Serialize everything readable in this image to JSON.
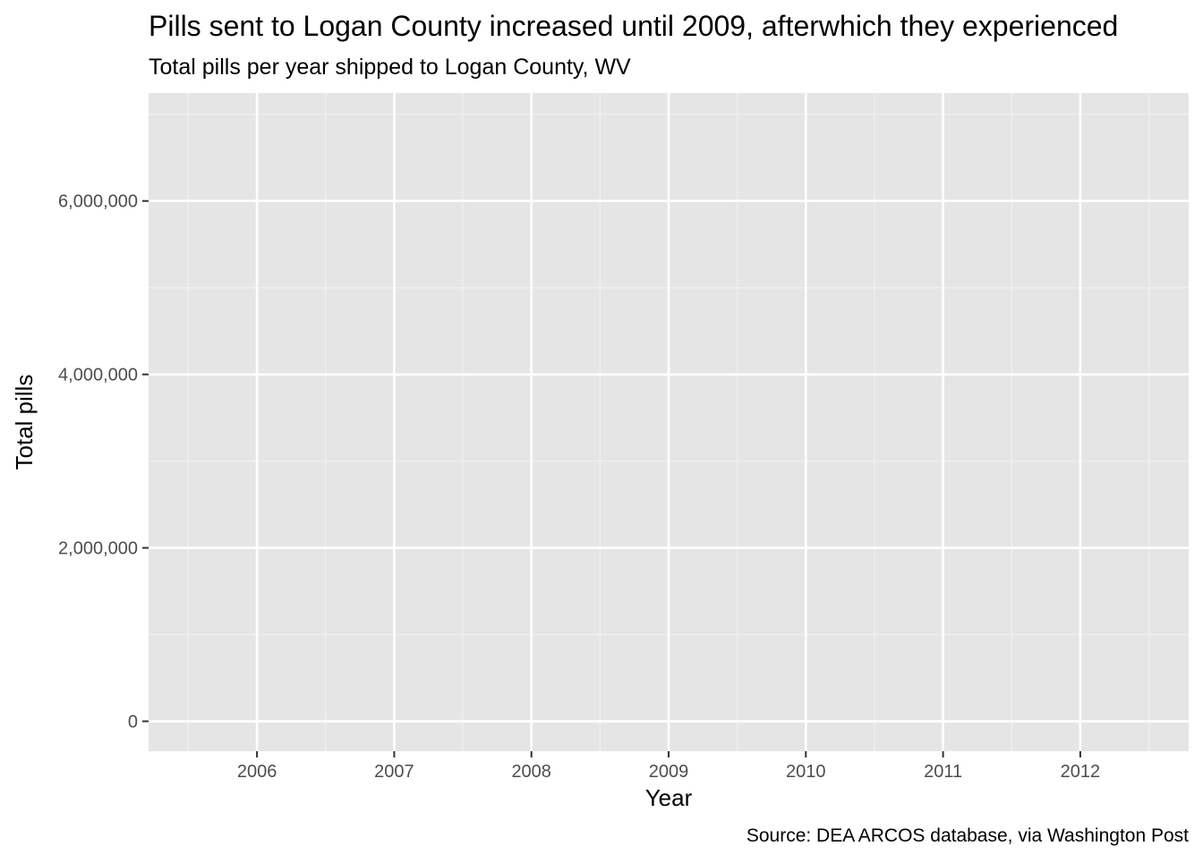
{
  "chart_data": {
    "type": "line",
    "title": "Pills sent to Logan County increased until 2009, afterwhich they experienced",
    "subtitle": "Total pills per year shipped to Logan County, WV",
    "xlabel": "Year",
    "ylabel": "Total pills",
    "caption": "Source: DEA ARCOS database, via Washington Post",
    "x_ticks": [
      "2006",
      "2007",
      "2008",
      "2009",
      "2010",
      "2011",
      "2012"
    ],
    "y_ticks": [
      {
        "value": 0,
        "label": "0"
      },
      {
        "value": 2000000,
        "label": "2,000,000"
      },
      {
        "value": 4000000,
        "label": "4,000,000"
      },
      {
        "value": 6000000,
        "label": "6,000,000"
      }
    ],
    "xlim": [
      2005.21,
      2012.79
    ],
    "ylim": [
      -345000,
      7245000
    ],
    "grid": true,
    "series": [],
    "colors": {
      "panel_background": "#e5e5e5",
      "grid_major": "#ffffff",
      "grid_minor": "#f0f0f0",
      "tick_text": "#4d4d4d",
      "text": "#000000"
    }
  }
}
